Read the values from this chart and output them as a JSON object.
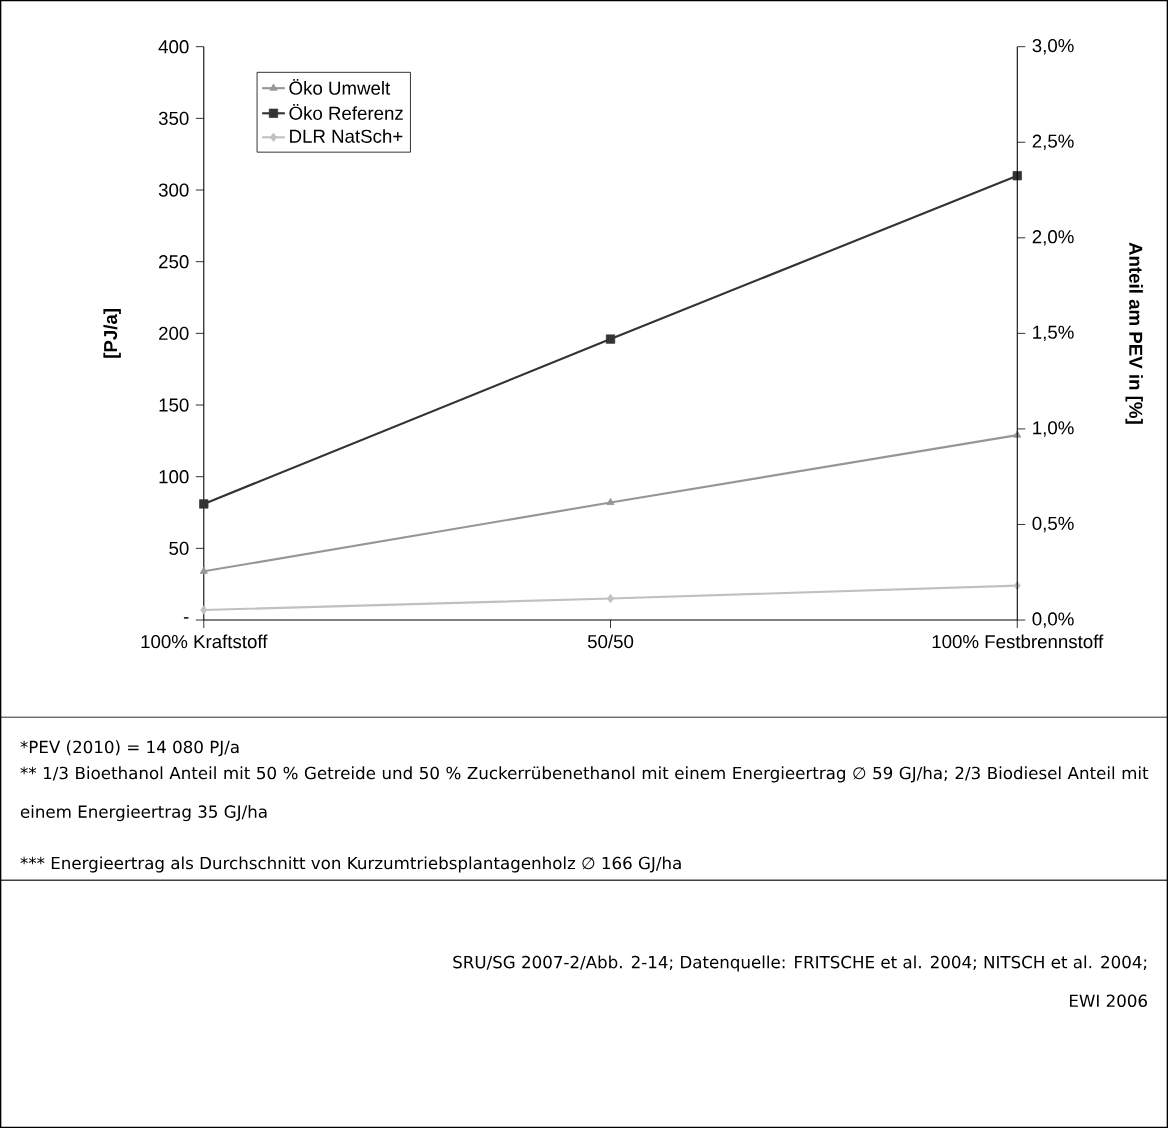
{
  "chart_data": {
    "type": "line",
    "categories": [
      "100% Kraftstoff",
      "50/50",
      "100% Festbrennstoff"
    ],
    "ylabel": "[PJ/a]",
    "y2label": "Anteil am PEV in [%]",
    "ylim": [
      0,
      400
    ],
    "yticks": [
      {
        "value": 0,
        "label": "-"
      },
      50,
      100,
      150,
      200,
      250,
      300,
      350,
      400
    ],
    "y2lim": [
      0,
      3
    ],
    "y2ticks": [
      {
        "value": 0,
        "label": "0,0%"
      },
      {
        "value": 0.5,
        "label": "0,5%"
      },
      {
        "value": 1,
        "label": "1,0%"
      },
      {
        "value": 1.5,
        "label": "1,5%"
      },
      {
        "value": 2,
        "label": "2,0%"
      },
      {
        "value": 2.5,
        "label": "2,5%"
      },
      {
        "value": 3,
        "label": "3,0%"
      }
    ],
    "series": [
      {
        "name": "Öko Umwelt",
        "color": "#969696",
        "marker": "triangle",
        "values": [
          34,
          82,
          129
        ]
      },
      {
        "name": "Öko Referenz",
        "color": "#333333",
        "marker": "square",
        "values": [
          81,
          196,
          310
        ]
      },
      {
        "name": "DLR NatSch+",
        "color": "#c0c0c0",
        "marker": "diamond",
        "values": [
          7,
          15,
          24
        ]
      }
    ],
    "legend": "top left",
    "grid": false,
    "line_style": "solid",
    "annotations": [
      "*PEV (2010) = 14 080 PJ/a",
      "** 1/3 Bioethanol Anteil mit 50 % Getreide und 50 % Zuckerrübenethanol mit einem Energieertrag ∅ 59 GJ/ha; 2/3 Biodiesel Anteil mit einem Energieertrag 35 GJ/ha",
      "*** Energieertrag als Durchschnitt von Kurzumtriebsplantagenholz ∅ 166 GJ/ha",
      "SRU/SG 2007-2/Abb. 2-14; Datenquelle: FRITSCHE et al. 2004; NITSCH et al. 2004; EWI 2006"
    ]
  }
}
